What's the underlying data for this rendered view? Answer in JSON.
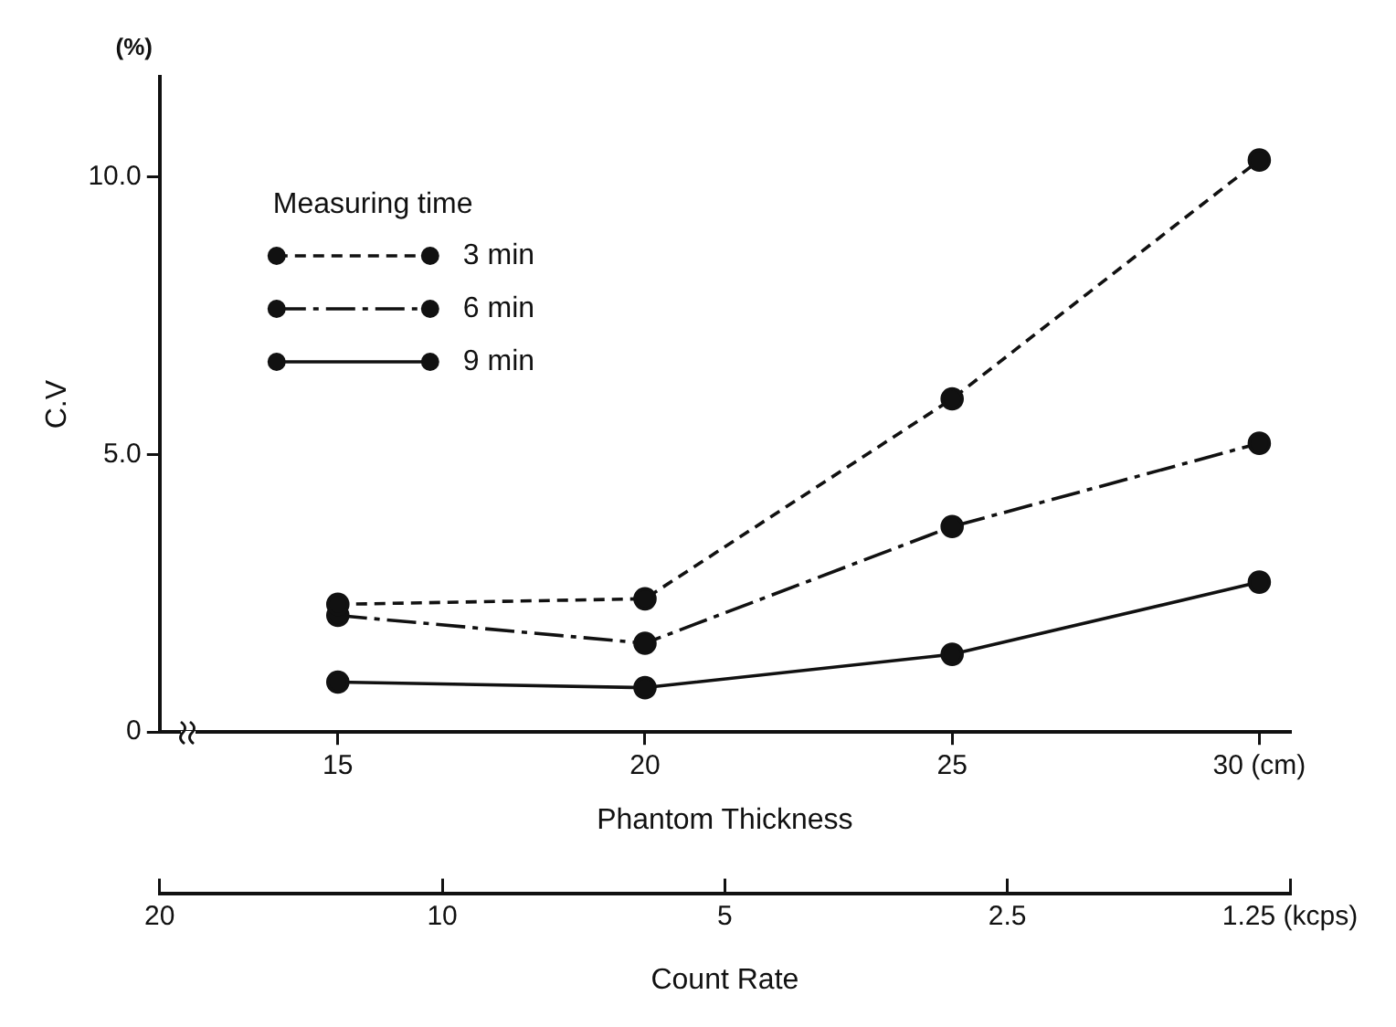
{
  "chart_data": {
    "type": "line",
    "x": [
      15,
      20,
      25,
      30
    ],
    "series": [
      {
        "name": "3 min",
        "color": "#111111",
        "values": [
          2.3,
          2.4,
          6.0,
          10.3
        ],
        "line_style": "dashed"
      },
      {
        "name": "6 min",
        "color": "#111111",
        "values": [
          2.1,
          1.6,
          3.7,
          5.2
        ],
        "line_style": "dashdot"
      },
      {
        "name": "9 min",
        "color": "#111111",
        "values": [
          0.9,
          0.8,
          1.4,
          2.7
        ],
        "line_style": "solid"
      }
    ],
    "xlabel": "Phantom Thickness",
    "ylabel": "C.V",
    "x2label": "Count Rate",
    "legend_title": "Measuring time",
    "annotations": [
      "(%)"
    ],
    "xlim": [
      12.1,
      30.5
    ],
    "xticks": [
      15,
      20,
      25,
      {
        "value": 30,
        "label": "30 (cm)"
      }
    ],
    "ylim": [
      0,
      11.8
    ],
    "yticks": [
      0,
      {
        "value": 5,
        "label": "5.0"
      },
      {
        "value": 10,
        "label": "10.0"
      }
    ],
    "x2lim": [
      20,
      1.25
    ],
    "x2ticks": [
      20,
      10,
      5,
      2.5,
      {
        "value": 1.25,
        "label": "1.25 (kcps)"
      }
    ],
    "log": "x2",
    "grid": false,
    "legend": "top left",
    "marker": "circle"
  }
}
